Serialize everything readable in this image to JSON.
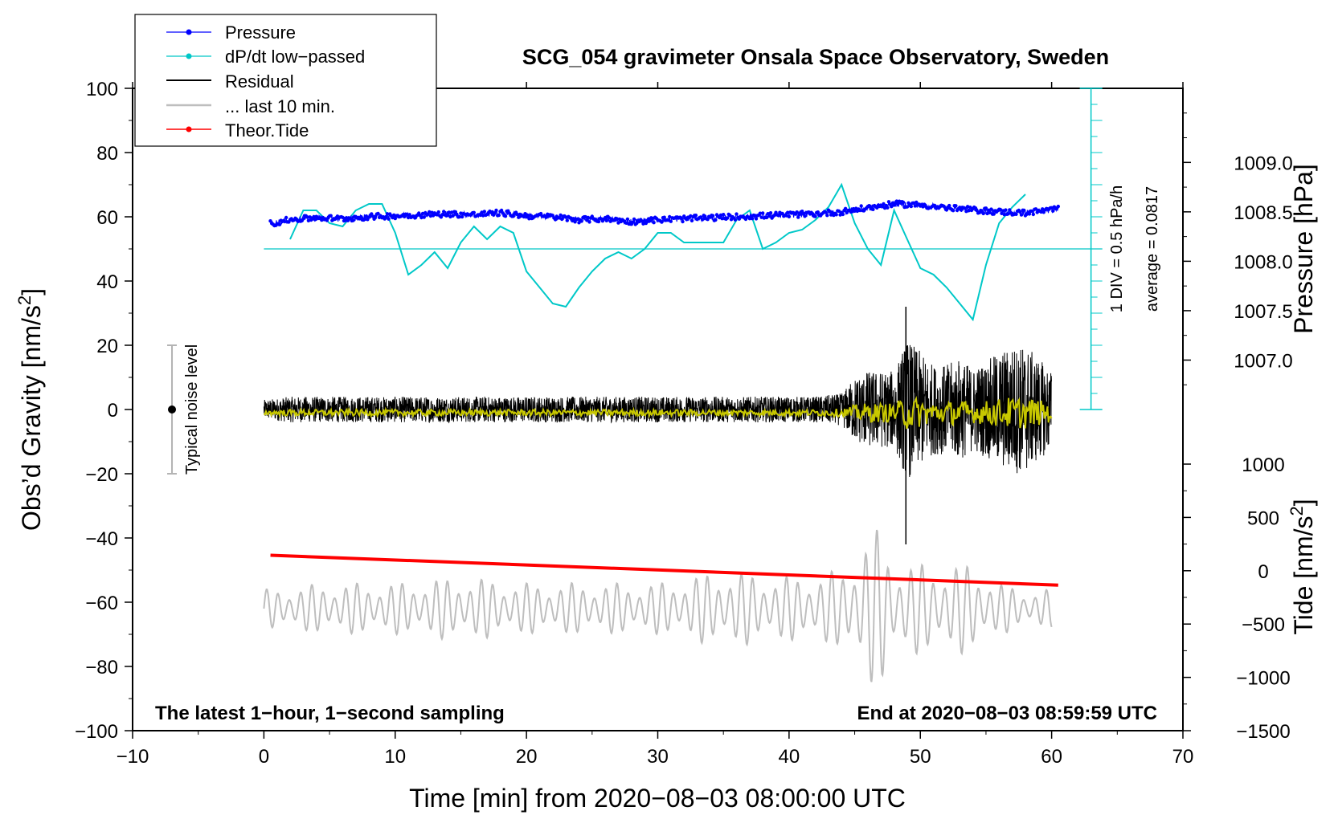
{
  "chart_data": {
    "type": "line",
    "title": "SCG_054 gravimeter Onsala Space Observatory, Sweden",
    "xlabel": "Time [min] from 2020−08−03 08:00:00 UTC",
    "ylabel_main": "Obs’d Gravity [nm/s",
    "ylabel_pressure": "Pressure [hPa]",
    "ylabel_tide": "Tide [nm/s",
    "sup2": "2",
    "ylabel_end": "]",
    "xlim": [
      -10,
      70
    ],
    "ylim": [
      -100,
      100
    ],
    "xticks": [
      "−10",
      "0",
      "10",
      "20",
      "30",
      "40",
      "50",
      "60",
      "70"
    ],
    "xtick_values": [
      -10,
      0,
      10,
      20,
      30,
      40,
      50,
      60,
      70
    ],
    "yticks": [
      "100",
      "80",
      "60",
      "40",
      "20",
      "0",
      "−20",
      "−40",
      "−60",
      "−80",
      "−100"
    ],
    "ytick_values": [
      100,
      80,
      60,
      40,
      20,
      0,
      -20,
      -40,
      -60,
      -80,
      -100
    ],
    "pressure_axis": {
      "ticks": [
        "1009.0",
        "1008.5",
        "1008.0",
        "1007.5",
        "1007.0"
      ],
      "tick_values": [
        1009.0,
        1008.5,
        1008.0,
        1007.5,
        1007.0
      ],
      "range": [
        1006.5,
        1009.75
      ]
    },
    "tide_axis": {
      "ticks": [
        "1000",
        "500",
        "0",
        "−500",
        "−1000",
        "−1500"
      ],
      "tick_values": [
        1000,
        500,
        0,
        -500,
        -1000,
        -1500
      ],
      "range": [
        -1500,
        1000
      ]
    },
    "legend": [
      {
        "label": "Pressure",
        "color": "#0000ff",
        "marker": true
      },
      {
        "label": "dP/dt low−passed",
        "color": "#00c8c8",
        "marker": true
      },
      {
        "label": "Residual",
        "color": "#000000",
        "marker": false
      },
      {
        "label": "... last 10 min.",
        "color": "#bebebe",
        "marker": false
      },
      {
        "label": "Theor.Tide",
        "color": "#ff0000",
        "marker": true
      }
    ],
    "footer_left": "The latest 1−hour, 1−second sampling",
    "footer_right": "End at 2020−08−03 08:59:59 UTC",
    "noise_label": "Typical noise level",
    "noise_bar": {
      "x": -7,
      "center": 0,
      "half_range": 20
    },
    "dpdt_scale_label": "1 DIV = 0.5 hPa/h",
    "dpdt_average_label": "average = 0.0817",
    "dpdt_axis": {
      "x": 63,
      "ymin": 0,
      "ymax": 100,
      "baseline": 50
    },
    "series": [
      {
        "name": "Pressure",
        "units": "hPa",
        "color": "#0000ff",
        "x": [
          0.5,
          2,
          4,
          6,
          8,
          10,
          12,
          14,
          16,
          18,
          20,
          22,
          24,
          26,
          28,
          30,
          32,
          34,
          36,
          38,
          40,
          42,
          44,
          46,
          48,
          50,
          52,
          54,
          56,
          58,
          60.5
        ],
        "values": [
          1008.38,
          1008.42,
          1008.44,
          1008.43,
          1008.45,
          1008.46,
          1008.47,
          1008.48,
          1008.47,
          1008.49,
          1008.46,
          1008.45,
          1008.42,
          1008.43,
          1008.4,
          1008.42,
          1008.43,
          1008.44,
          1008.45,
          1008.46,
          1008.47,
          1008.48,
          1008.5,
          1008.54,
          1008.58,
          1008.57,
          1008.54,
          1008.52,
          1008.5,
          1008.49,
          1008.53
        ]
      },
      {
        "name": "dP/dt low-passed",
        "units": "nm/s2 display scale",
        "color": "#00c8c8",
        "x": [
          2,
          3,
          4,
          5,
          6,
          7,
          8,
          9,
          10,
          11,
          12,
          13,
          14,
          15,
          16,
          17,
          18,
          19,
          20,
          21,
          22,
          23,
          24,
          25,
          26,
          27,
          28,
          29,
          30,
          31,
          32,
          33,
          34,
          35,
          36,
          37,
          38,
          39,
          40,
          41,
          42,
          43,
          44,
          45,
          46,
          47,
          48,
          49,
          50,
          51,
          52,
          53,
          54,
          55,
          56,
          57,
          58
        ],
        "values": [
          53,
          62,
          62,
          58,
          57,
          62,
          64,
          64,
          55,
          42,
          45,
          49,
          44,
          52,
          57,
          53,
          57,
          55,
          43,
          38,
          33,
          32,
          38,
          43,
          47,
          49,
          47,
          50,
          55,
          55,
          52,
          52,
          52,
          52,
          59,
          62,
          50,
          52,
          55,
          56,
          59,
          63,
          70,
          58,
          50,
          45,
          62,
          53,
          44,
          42,
          38,
          33,
          28,
          45,
          58,
          63,
          67
        ]
      },
      {
        "name": "Residual",
        "units": "nm/s2",
        "color": "#000000",
        "x": [
          0,
          2,
          4,
          6,
          8,
          10,
          12,
          14,
          16,
          18,
          20,
          22,
          24,
          26,
          28,
          30,
          32,
          34,
          36,
          38,
          40,
          42,
          44,
          45,
          46,
          47,
          48,
          49,
          50,
          51,
          52,
          53,
          54,
          55,
          56,
          57,
          58,
          59,
          60
        ],
        "values": [
          0,
          0,
          0,
          0,
          0,
          0,
          0,
          0,
          0,
          0,
          0,
          0,
          0,
          0,
          0,
          0,
          0,
          0,
          0,
          0,
          0,
          0,
          0,
          0,
          0,
          0,
          0,
          0,
          0,
          0,
          0,
          0,
          0,
          0,
          0,
          0,
          0,
          0,
          0
        ],
        "amplitude": [
          3,
          4,
          4,
          4,
          4,
          4,
          4,
          4,
          4,
          4,
          4,
          4,
          4,
          4,
          4,
          4,
          4,
          4,
          4,
          4,
          4,
          4,
          5,
          10,
          12,
          12,
          12,
          22,
          18,
          14,
          14,
          16,
          13,
          15,
          18,
          20,
          20,
          16,
          12
        ],
        "min_spike": {
          "x": 48.9,
          "value": -42
        },
        "max_spike": {
          "x": 48.9,
          "value": 32
        }
      },
      {
        "name": "... last 10 min.",
        "units": "nm/s2",
        "color": "#bebebe",
        "x": [
          0,
          5,
          10,
          15,
          20,
          25,
          30,
          35,
          40,
          44,
          45,
          46,
          47,
          48,
          50,
          52,
          54,
          56,
          58,
          60
        ],
        "center": [
          -62,
          -62,
          -62,
          -62,
          -62,
          -62,
          -62,
          -62,
          -62,
          -62,
          -62,
          -62,
          -62,
          -62,
          -62,
          -62,
          -62,
          -62,
          -62,
          -62
        ],
        "amplitude": [
          6,
          8,
          8,
          10,
          8,
          8,
          8,
          12,
          10,
          12,
          18,
          24,
          25,
          16,
          14,
          14,
          14,
          8,
          6,
          6
        ]
      },
      {
        "name": "Theor.Tide",
        "units": "nm/s2 tide axis",
        "color": "#ff0000",
        "x": [
          0.5,
          60.5
        ],
        "values": [
          145,
          -135
        ]
      }
    ]
  }
}
